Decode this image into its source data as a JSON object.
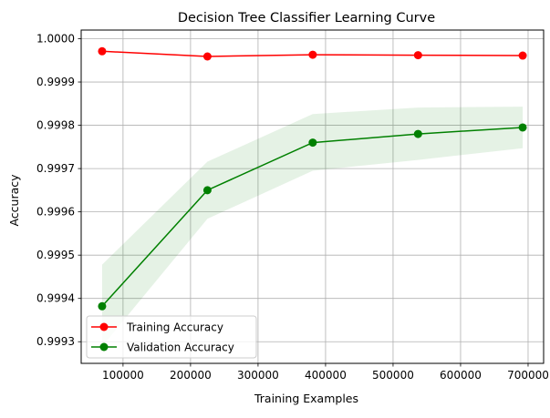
{
  "chart_data": {
    "type": "line",
    "title": "Decision Tree Classifier Learning Curve",
    "xlabel": "Training Examples",
    "ylabel": "Accuracy",
    "xlim": [
      38000,
      723000
    ],
    "ylim": [
      0.99925,
      1.00002
    ],
    "x_ticks": [
      100000,
      200000,
      300000,
      400000,
      500000,
      600000,
      700000
    ],
    "x_tick_labels": [
      "100000",
      "200000",
      "300000",
      "400000",
      "500000",
      "600000",
      "700000"
    ],
    "y_ticks": [
      0.9993,
      0.9994,
      0.9995,
      0.9996,
      0.9997,
      0.9998,
      0.9999,
      1.0
    ],
    "y_tick_labels": [
      "0.9993",
      "0.9994",
      "0.9995",
      "0.9996",
      "0.9997",
      "0.9998",
      "0.9999",
      "1.0000"
    ],
    "grid": true,
    "legend_position": "lower-left",
    "x": [
      69000,
      225000,
      381000,
      537000,
      692000
    ],
    "series": [
      {
        "name": "Training Accuracy",
        "color": "#ff0000",
        "values": [
          0.999971,
          0.999959,
          0.999963,
          0.999962,
          0.999961
        ],
        "band_lower": [
          0.99997,
          0.999958,
          0.999962,
          0.999961,
          0.99996
        ],
        "band_upper": [
          0.999972,
          0.99996,
          0.999964,
          0.999963,
          0.999962
        ]
      },
      {
        "name": "Validation Accuracy",
        "color": "#008000",
        "values": [
          0.999382,
          0.99965,
          0.99976,
          0.99978,
          0.999795
        ],
        "band_lower": [
          0.999289,
          0.999584,
          0.999695,
          0.99972,
          0.999747
        ],
        "band_upper": [
          0.999478,
          0.999716,
          0.999826,
          0.999841,
          0.999843
        ]
      }
    ]
  }
}
